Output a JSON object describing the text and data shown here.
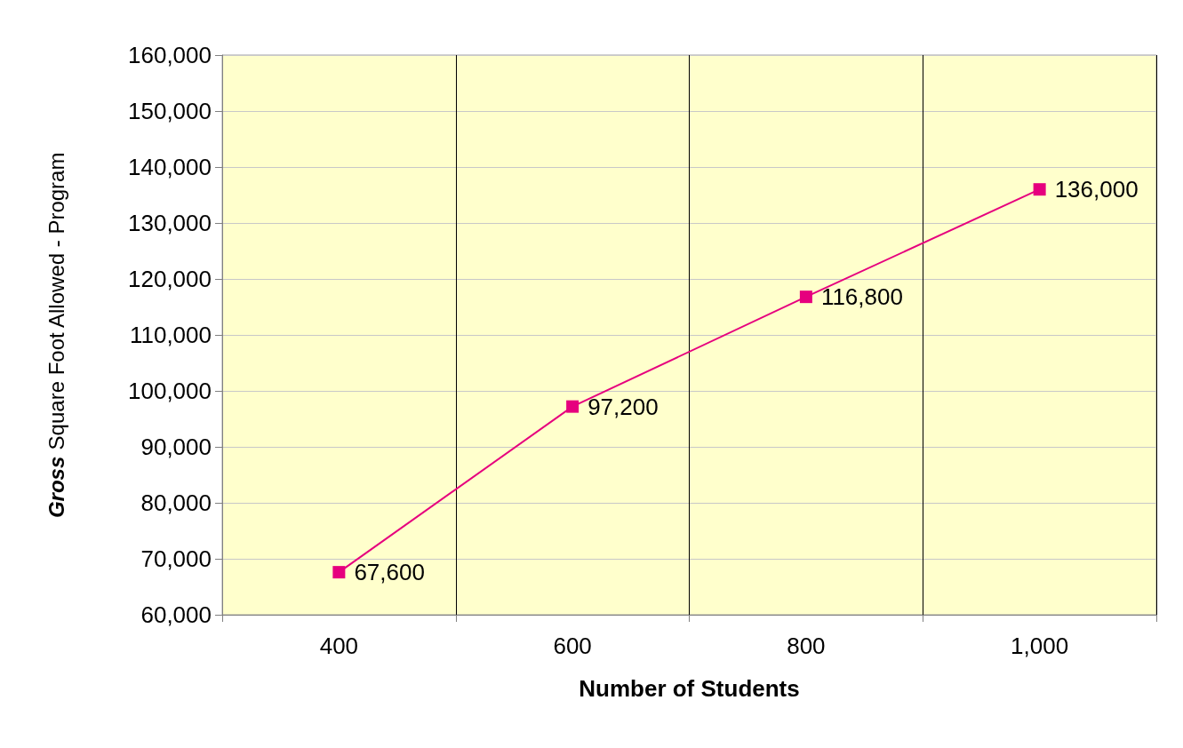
{
  "chart_data": {
    "type": "line",
    "xlabel": "Number of Students",
    "ylabel": "Gross Square Foot Allowed - Program",
    "categories": [
      "400",
      "600",
      "800",
      "1,000"
    ],
    "series": [
      {
        "color": "#e6007e",
        "values": [
          67600,
          97200,
          116800,
          136000
        ],
        "value_labels": [
          "67,600",
          "97,200",
          "116,800",
          "136,000"
        ]
      }
    ],
    "ylim": [
      60000,
      160000
    ],
    "yticks": [
      {
        "value": 60000,
        "label": "60,000"
      },
      {
        "value": 70000,
        "label": "70,000"
      },
      {
        "value": 80000,
        "label": "80,000"
      },
      {
        "value": 90000,
        "label": "90,000"
      },
      {
        "value": 100000,
        "label": "100,000"
      },
      {
        "value": 110000,
        "label": "110,000"
      },
      {
        "value": 120000,
        "label": "120,000"
      },
      {
        "value": 130000,
        "label": "130,000"
      },
      {
        "value": 140000,
        "label": "140,000"
      },
      {
        "value": 150000,
        "label": "150,000"
      },
      {
        "value": 160000,
        "label": "160,000"
      }
    ],
    "grid": true,
    "marker": "square",
    "line_style": "solid"
  }
}
